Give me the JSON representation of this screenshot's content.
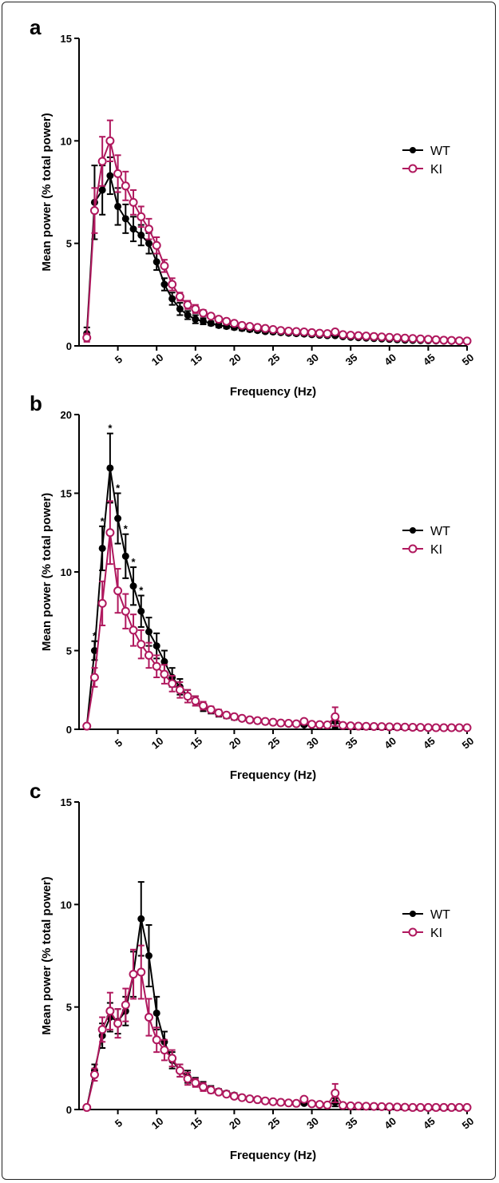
{
  "colors": {
    "WT": "#000000",
    "KI": "#B0185E"
  },
  "chart_data": [
    {
      "panel_label": "a",
      "type": "line",
      "xlabel": "Frequency (Hz)",
      "ylabel": "Mean power (% total power)",
      "xlim": [
        0,
        50
      ],
      "ylim": [
        0,
        15
      ],
      "xticks": [
        5,
        10,
        15,
        20,
        25,
        30,
        35,
        40,
        45,
        50
      ],
      "yticks": [
        0,
        5,
        10,
        15
      ],
      "legend_position": "right",
      "x": [
        1,
        2,
        3,
        4,
        5,
        6,
        7,
        8,
        9,
        10,
        11,
        12,
        13,
        14,
        15,
        16,
        17,
        18,
        19,
        20,
        21,
        22,
        23,
        24,
        25,
        26,
        27,
        28,
        29,
        30,
        31,
        32,
        33,
        34,
        35,
        36,
        37,
        38,
        39,
        40,
        41,
        42,
        43,
        44,
        45,
        46,
        47,
        48,
        49,
        50
      ],
      "series": [
        {
          "name": "WT",
          "values": [
            0.6,
            7.0,
            7.6,
            8.3,
            6.8,
            6.2,
            5.7,
            5.4,
            5.0,
            4.1,
            3.0,
            2.3,
            1.8,
            1.5,
            1.3,
            1.2,
            1.1,
            1.0,
            0.95,
            0.9,
            0.85,
            0.8,
            0.75,
            0.7,
            0.68,
            0.65,
            0.62,
            0.6,
            0.58,
            0.55,
            0.52,
            0.5,
            0.5,
            0.45,
            0.42,
            0.4,
            0.38,
            0.36,
            0.34,
            0.32,
            0.3,
            0.28,
            0.27,
            0.26,
            0.25,
            0.24,
            0.23,
            0.22,
            0.21,
            0.2
          ],
          "errors": [
            0.3,
            1.8,
            1.2,
            0.9,
            0.9,
            0.7,
            0.6,
            0.5,
            0.5,
            0.4,
            0.3,
            0.3,
            0.3,
            0.2,
            0.2,
            0.15,
            0.1,
            0.1,
            0.1,
            0.1,
            0.1,
            0.1,
            0.08,
            0.08,
            0.08,
            0.08,
            0.08,
            0.08,
            0.08,
            0.08,
            0.06,
            0.06,
            0.06,
            0.06,
            0.06,
            0.06,
            0.05,
            0.05,
            0.05,
            0.05,
            0.05,
            0.05,
            0.05,
            0.05,
            0.05,
            0.05,
            0.05,
            0.05,
            0.05,
            0.05
          ]
        },
        {
          "name": "KI",
          "values": [
            0.4,
            6.6,
            9.0,
            10.0,
            8.4,
            7.8,
            7.0,
            6.3,
            5.7,
            4.9,
            3.9,
            3.0,
            2.4,
            2.0,
            1.8,
            1.6,
            1.45,
            1.3,
            1.2,
            1.1,
            1.0,
            0.95,
            0.9,
            0.85,
            0.8,
            0.75,
            0.72,
            0.7,
            0.68,
            0.65,
            0.62,
            0.6,
            0.68,
            0.55,
            0.52,
            0.5,
            0.48,
            0.46,
            0.44,
            0.42,
            0.4,
            0.38,
            0.36,
            0.34,
            0.32,
            0.3,
            0.28,
            0.27,
            0.25,
            0.24
          ],
          "errors": [
            0.2,
            1.1,
            1.2,
            1.0,
            0.9,
            0.7,
            0.6,
            0.5,
            0.5,
            0.4,
            0.3,
            0.3,
            0.2,
            0.2,
            0.2,
            0.15,
            0.1,
            0.1,
            0.1,
            0.1,
            0.1,
            0.1,
            0.08,
            0.08,
            0.08,
            0.08,
            0.08,
            0.08,
            0.08,
            0.08,
            0.06,
            0.06,
            0.06,
            0.06,
            0.06,
            0.06,
            0.05,
            0.05,
            0.05,
            0.05,
            0.05,
            0.05,
            0.05,
            0.05,
            0.05,
            0.05,
            0.05,
            0.05,
            0.05,
            0.05
          ]
        }
      ],
      "annotations": []
    },
    {
      "panel_label": "b",
      "type": "line",
      "xlabel": "Frequency (Hz)",
      "ylabel": "Mean power (% total power)",
      "xlim": [
        0,
        50
      ],
      "ylim": [
        0,
        20
      ],
      "xticks": [
        5,
        10,
        15,
        20,
        25,
        30,
        35,
        40,
        45,
        50
      ],
      "yticks": [
        0,
        5,
        10,
        15,
        20
      ],
      "legend_position": "right",
      "x": [
        1,
        2,
        3,
        4,
        5,
        6,
        7,
        8,
        9,
        10,
        11,
        12,
        13,
        14,
        15,
        16,
        17,
        18,
        19,
        20,
        21,
        22,
        23,
        24,
        25,
        26,
        27,
        28,
        29,
        30,
        31,
        32,
        33,
        34,
        35,
        36,
        37,
        38,
        39,
        40,
        41,
        42,
        43,
        44,
        45,
        46,
        47,
        48,
        49,
        50
      ],
      "series": [
        {
          "name": "WT",
          "values": [
            0.2,
            5.0,
            11.5,
            16.6,
            13.4,
            11.0,
            9.1,
            7.5,
            6.2,
            5.3,
            4.3,
            3.3,
            2.7,
            2.1,
            1.8,
            1.4,
            1.2,
            1.0,
            0.85,
            0.75,
            0.65,
            0.55,
            0.5,
            0.45,
            0.4,
            0.35,
            0.32,
            0.3,
            0.28,
            0.25,
            0.23,
            0.22,
            0.5,
            0.2,
            0.18,
            0.17,
            0.16,
            0.15,
            0.14,
            0.13,
            0.12,
            0.11,
            0.1,
            0.1,
            0.1,
            0.1,
            0.1,
            0.1,
            0.1,
            0.1
          ],
          "errors": [
            0.1,
            0.6,
            1.4,
            2.2,
            1.6,
            1.4,
            1.2,
            1.0,
            0.9,
            0.8,
            0.7,
            0.6,
            0.5,
            0.4,
            0.3,
            0.25,
            0.2,
            0.2,
            0.15,
            0.15,
            0.1,
            0.1,
            0.1,
            0.1,
            0.1,
            0.08,
            0.08,
            0.08,
            0.08,
            0.08,
            0.06,
            0.06,
            0.4,
            0.06,
            0.05,
            0.05,
            0.05,
            0.05,
            0.05,
            0.05,
            0.05,
            0.05,
            0.05,
            0.05,
            0.05,
            0.05,
            0.05,
            0.05,
            0.05,
            0.05
          ]
        },
        {
          "name": "KI",
          "values": [
            0.2,
            3.3,
            8.0,
            12.5,
            8.8,
            7.5,
            6.3,
            5.4,
            4.7,
            4.0,
            3.5,
            2.9,
            2.5,
            2.1,
            1.8,
            1.5,
            1.25,
            1.05,
            0.9,
            0.8,
            0.7,
            0.6,
            0.55,
            0.5,
            0.45,
            0.4,
            0.38,
            0.35,
            0.5,
            0.32,
            0.3,
            0.28,
            0.8,
            0.25,
            0.22,
            0.2,
            0.19,
            0.18,
            0.17,
            0.16,
            0.15,
            0.14,
            0.13,
            0.12,
            0.11,
            0.1,
            0.1,
            0.1,
            0.1,
            0.1
          ],
          "errors": [
            0.1,
            0.6,
            1.4,
            2.0,
            1.4,
            1.1,
            1.0,
            0.9,
            0.8,
            0.7,
            0.6,
            0.5,
            0.5,
            0.4,
            0.3,
            0.25,
            0.2,
            0.2,
            0.15,
            0.15,
            0.1,
            0.1,
            0.1,
            0.1,
            0.1,
            0.08,
            0.08,
            0.08,
            0.08,
            0.08,
            0.06,
            0.06,
            0.6,
            0.06,
            0.05,
            0.05,
            0.05,
            0.05,
            0.05,
            0.05,
            0.05,
            0.05,
            0.05,
            0.05,
            0.05,
            0.05,
            0.05,
            0.05,
            0.05,
            0.05
          ]
        }
      ],
      "annotations": [
        {
          "text": "*",
          "x": 2,
          "y": 5.6
        },
        {
          "text": "*",
          "x": 3,
          "y": 12.9
        },
        {
          "text": "*",
          "x": 4,
          "y": 18.8
        },
        {
          "text": "*",
          "x": 5,
          "y": 15.0
        },
        {
          "text": "*",
          "x": 6,
          "y": 12.4
        },
        {
          "text": "*",
          "x": 7,
          "y": 10.3
        },
        {
          "text": "*",
          "x": 8,
          "y": 8.5
        }
      ]
    },
    {
      "panel_label": "c",
      "type": "line",
      "xlabel": "Frequency (Hz)",
      "ylabel": "Mean power (% total power)",
      "xlim": [
        0,
        50
      ],
      "ylim": [
        0,
        15
      ],
      "xticks": [
        5,
        10,
        15,
        20,
        25,
        30,
        35,
        40,
        45,
        50
      ],
      "yticks": [
        0,
        5,
        10,
        15
      ],
      "legend_position": "right",
      "x": [
        1,
        2,
        3,
        4,
        5,
        6,
        7,
        8,
        9,
        10,
        11,
        12,
        13,
        14,
        15,
        16,
        17,
        18,
        19,
        20,
        21,
        22,
        23,
        24,
        25,
        26,
        27,
        28,
        29,
        30,
        31,
        32,
        33,
        34,
        35,
        36,
        37,
        38,
        39,
        40,
        41,
        42,
        43,
        44,
        45,
        46,
        47,
        48,
        49,
        50
      ],
      "series": [
        {
          "name": "WT",
          "values": [
            0.1,
            1.9,
            3.6,
            4.5,
            4.3,
            4.8,
            6.6,
            9.3,
            7.5,
            4.7,
            3.3,
            2.4,
            1.9,
            1.6,
            1.35,
            1.15,
            1.0,
            0.9,
            0.8,
            0.7,
            0.6,
            0.55,
            0.5,
            0.45,
            0.4,
            0.37,
            0.34,
            0.3,
            0.3,
            0.28,
            0.25,
            0.22,
            0.35,
            0.2,
            0.18,
            0.17,
            0.16,
            0.15,
            0.14,
            0.13,
            0.12,
            0.11,
            0.1,
            0.1,
            0.1,
            0.1,
            0.1,
            0.1,
            0.1,
            0.1
          ],
          "errors": [
            0.05,
            0.3,
            0.6,
            0.7,
            0.6,
            0.7,
            1.1,
            1.8,
            1.5,
            0.8,
            0.5,
            0.4,
            0.3,
            0.3,
            0.2,
            0.2,
            0.15,
            0.1,
            0.1,
            0.1,
            0.1,
            0.08,
            0.08,
            0.08,
            0.08,
            0.06,
            0.06,
            0.06,
            0.06,
            0.06,
            0.05,
            0.05,
            0.2,
            0.05,
            0.05,
            0.05,
            0.05,
            0.05,
            0.05,
            0.05,
            0.05,
            0.05,
            0.05,
            0.05,
            0.05,
            0.05,
            0.05,
            0.05,
            0.05,
            0.05
          ]
        },
        {
          "name": "KI",
          "values": [
            0.1,
            1.7,
            3.9,
            4.8,
            4.2,
            5.1,
            6.6,
            6.7,
            4.5,
            3.4,
            2.9,
            2.5,
            1.9,
            1.5,
            1.3,
            1.1,
            0.95,
            0.85,
            0.75,
            0.65,
            0.58,
            0.52,
            0.48,
            0.42,
            0.38,
            0.35,
            0.32,
            0.3,
            0.5,
            0.28,
            0.25,
            0.22,
            0.8,
            0.2,
            0.18,
            0.17,
            0.16,
            0.15,
            0.14,
            0.13,
            0.12,
            0.11,
            0.1,
            0.1,
            0.1,
            0.1,
            0.1,
            0.1,
            0.1,
            0.1
          ],
          "errors": [
            0.05,
            0.3,
            0.6,
            0.9,
            0.7,
            0.8,
            1.2,
            1.3,
            0.9,
            0.6,
            0.5,
            0.4,
            0.3,
            0.3,
            0.2,
            0.2,
            0.15,
            0.1,
            0.1,
            0.1,
            0.1,
            0.08,
            0.08,
            0.08,
            0.08,
            0.06,
            0.06,
            0.06,
            0.08,
            0.06,
            0.05,
            0.05,
            0.45,
            0.05,
            0.05,
            0.05,
            0.05,
            0.05,
            0.05,
            0.05,
            0.05,
            0.05,
            0.05,
            0.05,
            0.05,
            0.05,
            0.05,
            0.05,
            0.05,
            0.05
          ]
        }
      ],
      "annotations": []
    }
  ]
}
